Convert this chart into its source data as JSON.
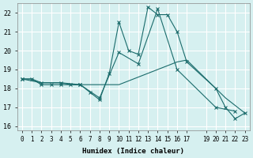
{
  "xlabel": "Humidex (Indice chaleur)",
  "bg_color": "#d6f0f0",
  "line_color": "#1a6b6b",
  "grid_color": "#ffffff",
  "xlim": [
    -0.5,
    23.5
  ],
  "ylim": [
    15.8,
    22.5
  ],
  "yticks": [
    16,
    17,
    18,
    19,
    20,
    21,
    22
  ],
  "xticks": [
    0,
    1,
    2,
    3,
    4,
    5,
    6,
    7,
    8,
    9,
    10,
    11,
    12,
    13,
    14,
    15,
    16,
    17,
    19,
    20,
    21,
    22,
    23
  ],
  "xtick_labels": [
    "0",
    "1",
    "2",
    "3",
    "4",
    "5",
    "6",
    "7",
    "8",
    "9",
    "10",
    "11",
    "12",
    "13",
    "14",
    "15",
    "16",
    "17",
    "19",
    "20",
    "21",
    "22",
    "23"
  ],
  "line1": {
    "x": [
      0,
      1,
      2,
      3,
      4,
      5,
      6,
      7,
      8,
      9,
      10,
      11,
      12,
      13,
      14,
      15,
      16,
      17,
      20,
      21,
      22,
      23
    ],
    "y": [
      18.5,
      18.5,
      18.2,
      18.2,
      18.2,
      18.2,
      18.2,
      17.8,
      17.4,
      18.8,
      21.5,
      20.0,
      19.8,
      22.3,
      21.9,
      21.9,
      21.0,
      19.4,
      18.0,
      17.0,
      16.4,
      16.7
    ]
  },
  "line2": {
    "x": [
      0,
      1,
      2,
      3,
      4,
      5,
      6,
      7,
      8,
      9,
      10,
      11,
      12,
      13,
      14,
      15,
      16,
      17,
      20,
      21,
      22,
      23
    ],
    "y": [
      18.5,
      18.5,
      18.3,
      18.3,
      18.3,
      18.2,
      18.2,
      18.2,
      18.2,
      18.2,
      18.2,
      18.4,
      18.6,
      18.8,
      19.0,
      19.2,
      19.4,
      19.5,
      18.0,
      17.5,
      17.1,
      16.7
    ]
  },
  "line3": {
    "x": [
      0,
      2,
      4,
      6,
      8,
      10,
      12,
      14,
      16,
      20,
      22
    ],
    "y": [
      18.5,
      18.3,
      18.3,
      18.2,
      17.5,
      19.9,
      19.3,
      22.2,
      19.0,
      17.0,
      16.8
    ]
  }
}
